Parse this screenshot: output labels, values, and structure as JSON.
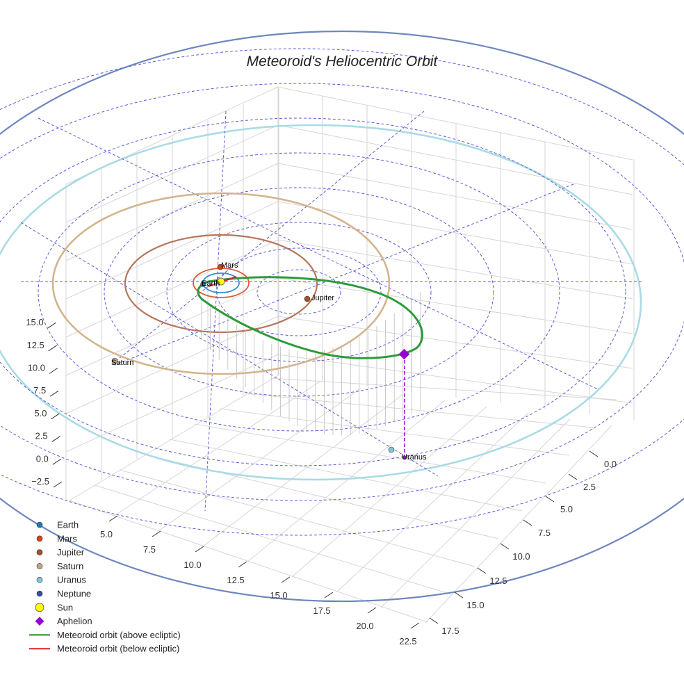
{
  "chart_data": {
    "type": "scatter",
    "title": "Meteoroid's Heliocentric Orbit",
    "axes": {
      "x_ticks": [
        "5.0",
        "7.5",
        "10.0",
        "12.5",
        "15.0",
        "17.5",
        "20.0",
        "22.5"
      ],
      "y_ticks": [
        "0.0",
        "2.5",
        "5.0",
        "7.5",
        "10.0",
        "12.5",
        "15.0",
        "17.5"
      ],
      "z_ticks": [
        "−2.5",
        "0.0",
        "2.5",
        "5.0",
        "7.5",
        "10.0",
        "12.5",
        "15.0"
      ]
    },
    "grid": true,
    "legend_position": "bottom-left",
    "planet_labels": [
      "Mars",
      "Earth",
      "Jupiter",
      "Saturn",
      "Uranus"
    ],
    "legend": [
      {
        "label": "Earth",
        "marker": "dot",
        "color": "#1f77b4"
      },
      {
        "label": "Mars",
        "marker": "dot",
        "color": "#d84315"
      },
      {
        "label": "Jupiter",
        "marker": "dot",
        "color": "#a0522d"
      },
      {
        "label": "Saturn",
        "marker": "dot",
        "color": "#c4a484"
      },
      {
        "label": "Uranus",
        "marker": "dot",
        "color": "#7fc7d9"
      },
      {
        "label": "Neptune",
        "marker": "dot",
        "color": "#3f4a9a"
      },
      {
        "label": "Sun",
        "marker": "big-dot",
        "color": "#ffff00"
      },
      {
        "label": "Aphelion",
        "marker": "diamond",
        "color": "#9400d3"
      },
      {
        "label": "Meteoroid orbit (above ecliptic)",
        "marker": "line",
        "color": "#1a8c1a"
      },
      {
        "label": "Meteoroid orbit (below ecliptic)",
        "marker": "line",
        "color": "#e32020"
      }
    ]
  }
}
